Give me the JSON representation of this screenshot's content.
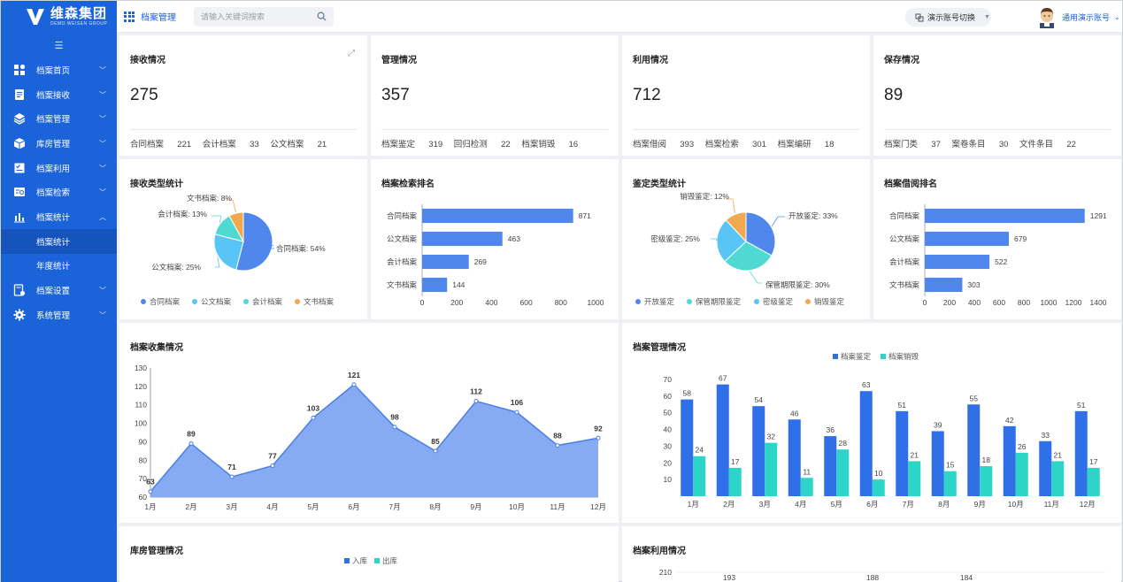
{
  "brand": {
    "name": "维森集团",
    "subtitle": "DEMO WEISEN GROUP"
  },
  "sidebar": {
    "items": [
      {
        "label": "档案首页",
        "icon": "dashboard-icon",
        "expanded": false
      },
      {
        "label": "档案接收",
        "icon": "document-list-icon",
        "expanded": false
      },
      {
        "label": "档案管理",
        "icon": "layers-icon",
        "expanded": false
      },
      {
        "label": "库房管理",
        "icon": "box-icon",
        "expanded": false
      },
      {
        "label": "档案利用",
        "icon": "checklist-icon",
        "expanded": false
      },
      {
        "label": "档案检索",
        "icon": "search-card-icon",
        "expanded": false
      },
      {
        "label": "档案统计",
        "icon": "bar-chart-icon",
        "expanded": true,
        "children": [
          "档案统计",
          "年度统计"
        ]
      },
      {
        "label": "档案设置",
        "icon": "settings-doc-icon",
        "expanded": false
      },
      {
        "label": "系统管理",
        "icon": "gear-icon",
        "expanded": false
      }
    ],
    "active_child": "档案统计"
  },
  "header": {
    "title": "档案管理",
    "search_placeholder": "请输入关键词搜索",
    "switch_label": "演示账号切换",
    "user_name": "通用演示账号"
  },
  "summary": [
    {
      "title": "接收情况",
      "total": "275",
      "stats": [
        {
          "label": "合同档案",
          "value": "221"
        },
        {
          "label": "会计档案",
          "value": "33"
        },
        {
          "label": "公文档案",
          "value": "21"
        }
      ]
    },
    {
      "title": "管理情况",
      "total": "357",
      "stats": [
        {
          "label": "档案鉴定",
          "value": "319"
        },
        {
          "label": "回归检测",
          "value": "22"
        },
        {
          "label": "档案销毁",
          "value": "16"
        }
      ]
    },
    {
      "title": "利用情况",
      "total": "712",
      "stats": [
        {
          "label": "档案借阅",
          "value": "393"
        },
        {
          "label": "档案检索",
          "value": "301"
        },
        {
          "label": "档案编研",
          "value": "18"
        }
      ]
    },
    {
      "title": "保存情况",
      "total": "89",
      "stats": [
        {
          "label": "档案门类",
          "value": "37"
        },
        {
          "label": "案卷条目",
          "value": "30"
        },
        {
          "label": "文件条目",
          "value": "22"
        }
      ]
    }
  ],
  "chart_data": [
    {
      "id": "receive-type",
      "type": "pie",
      "title": "接收类型统计",
      "slices": [
        {
          "name": "合同档案",
          "value": 54,
          "label": "合同档案: 54%",
          "color": "#5087ec"
        },
        {
          "name": "公文档案",
          "value": 25,
          "label": "公文档案: 25%",
          "color": "#58c5f6"
        },
        {
          "name": "会计档案",
          "value": 13,
          "label": "会计档案: 13%",
          "color": "#4fd9d3"
        },
        {
          "name": "文书档案",
          "value": 8,
          "label": "文书档案: 8%",
          "color": "#f0a94f"
        }
      ],
      "legend_position": "bottom"
    },
    {
      "id": "search-rank",
      "type": "bar",
      "orientation": "horizontal",
      "title": "档案检索排名",
      "categories": [
        "合同档案",
        "公文档案",
        "会计档案",
        "文书档案"
      ],
      "values": [
        871,
        463,
        269,
        144
      ],
      "xlim": [
        0,
        1000
      ],
      "xticks": [
        0,
        200,
        400,
        600,
        800,
        1000
      ],
      "color": "#5087ec"
    },
    {
      "id": "appraisal-type",
      "type": "pie",
      "title": "鉴定类型统计",
      "slices": [
        {
          "name": "开放鉴定",
          "value": 33,
          "label": "开放鉴定: 33%",
          "color": "#5087ec"
        },
        {
          "name": "保管期限鉴定",
          "value": 30,
          "label": "保管期限鉴定: 30%",
          "color": "#4fd9d3"
        },
        {
          "name": "密级鉴定",
          "value": 25,
          "label": "密级鉴定: 25%",
          "color": "#58c5f6"
        },
        {
          "name": "销毁鉴定",
          "value": 12,
          "label": "销毁鉴定: 12%",
          "color": "#f0a94f"
        }
      ],
      "legend_position": "bottom"
    },
    {
      "id": "borrow-rank",
      "type": "bar",
      "orientation": "horizontal",
      "title": "档案借阅排名",
      "categories": [
        "合同档案",
        "公文档案",
        "会计档案",
        "文书档案"
      ],
      "values": [
        1291,
        679,
        522,
        303
      ],
      "xlim": [
        0,
        1400
      ],
      "xticks": [
        0,
        200,
        400,
        600,
        800,
        1000,
        1200,
        1400
      ],
      "color": "#5087ec"
    },
    {
      "id": "collect",
      "type": "area",
      "title": "档案收集情况",
      "categories": [
        "1月",
        "2月",
        "3月",
        "4月",
        "5月",
        "6月",
        "7月",
        "8月",
        "9月",
        "10月",
        "11月",
        "12月"
      ],
      "values": [
        63,
        89,
        71,
        77,
        103,
        121,
        98,
        85,
        112,
        106,
        88,
        92
      ],
      "ylim": [
        60,
        130
      ],
      "yticks": [
        60,
        70,
        80,
        90,
        100,
        110,
        120,
        130
      ],
      "color": "#5087ec"
    },
    {
      "id": "manage",
      "type": "bar",
      "title": "档案管理情况",
      "categories": [
        "1月",
        "2月",
        "3月",
        "4月",
        "5月",
        "6月",
        "7月",
        "8月",
        "9月",
        "10月",
        "11月",
        "12月"
      ],
      "series": [
        {
          "name": "档案鉴定",
          "values": [
            58,
            67,
            54,
            46,
            36,
            63,
            51,
            39,
            55,
            42,
            33,
            51
          ],
          "color": "#2f6fe8"
        },
        {
          "name": "档案销毁",
          "values": [
            24,
            17,
            32,
            11,
            28,
            10,
            21,
            15,
            18,
            26,
            21,
            17
          ],
          "color": "#2dd4c8"
        }
      ],
      "ylim": [
        0,
        70
      ],
      "yticks": [
        10,
        20,
        30,
        40,
        50,
        60,
        70
      ],
      "legend_position": "top-center"
    },
    {
      "id": "storage",
      "type": "bar",
      "title": "库房管理情况",
      "series": [
        {
          "name": "入库",
          "color": "#2f6fe8"
        },
        {
          "name": "出库",
          "color": "#2dd4c8"
        }
      ],
      "legend_position": "top-center"
    },
    {
      "id": "usage",
      "type": "line",
      "title": "档案利用情况",
      "yticks": [
        210
      ],
      "visible_labels": [
        "193",
        "188",
        "184"
      ]
    }
  ]
}
